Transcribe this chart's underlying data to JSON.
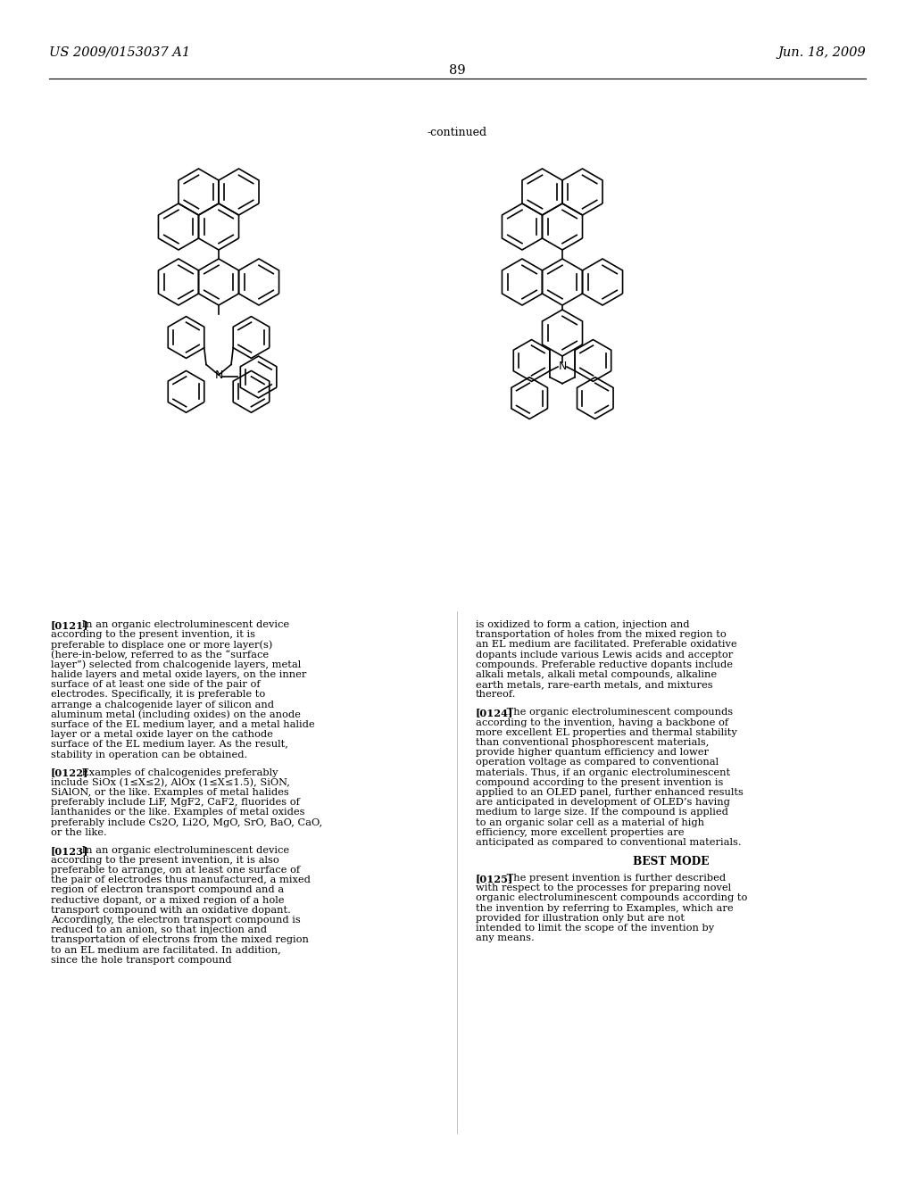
{
  "bg_color": "#ffffff",
  "header_left": "US 2009/0153037 A1",
  "header_right": "Jun. 18, 2009",
  "page_number": "89",
  "continued_label": "-continued",
  "paragraphs": [
    {
      "tag": "[0121]",
      "text": "In an organic electroluminescent device according to the present invention, it is preferable to displace one or more layer(s) (here-in-below, referred to as the “surface layer”) selected from chalcogenide layers, metal halide layers and metal oxide layers, on the inner surface of at least one side of the pair of electrodes. Specifically, it is preferable to arrange a chalcogenide layer of silicon and aluminum metal (including oxides) on the anode surface of the EL medium layer, and a metal halide layer or a metal oxide layer on the cathode surface of the EL medium layer. As the result, stability in operation can be obtained.",
      "col": 0
    },
    {
      "tag": "[0122]",
      "text": "Examples of chalcogenides preferably include SiOx (1≤X≤2), AlOx (1≤X≤1.5), SiON, SiAlON, or the like. Examples of metal halides preferably include LiF, MgF2, CaF2, fluorides of lanthanides or the like. Examples of metal oxides preferably include Cs2O, Li2O, MgO, SrO, BaO, CaO, or the like.",
      "col": 0
    },
    {
      "tag": "[0123]",
      "text": "In an organic electroluminescent device according to the present invention, it is also preferable to arrange, on at least one surface of the pair of electrodes thus manufactured, a mixed region of electron transport compound and a reductive dopant, or a mixed region of a hole transport compound with an oxidative dopant. Accordingly, the electron transport compound is reduced to an anion, so that injection and transportation of electrons from the mixed region to an EL medium are facilitated. In addition, since the hole transport compound",
      "col": 0
    },
    {
      "tag": "",
      "text": "is oxidized to form a cation, injection and transportation of holes from the mixed region to an EL medium are facilitated. Preferable oxidative dopants include various Lewis acids and acceptor compounds. Preferable reductive dopants include alkali metals, alkali metal compounds, alkaline earth metals, rare-earth metals, and mixtures thereof.",
      "col": 1
    },
    {
      "tag": "[0124]",
      "text": "The organic electroluminescent compounds according to the invention, having a backbone of more excellent EL properties and thermal stability than conventional phosphorescent materials, provide higher quantum efficiency and lower operation voltage as compared to conventional materials. Thus, if an organic electroluminescent compound according to the present invention is applied to an OLED panel, further enhanced results are anticipated in development of OLED’s having medium to large size. If the compound is applied to an organic solar cell as a material of high efficiency, more excellent properties are anticipated as compared to conventional materials.",
      "col": 1
    },
    {
      "tag": "BEST MODE",
      "text": "",
      "col": 1,
      "center": true
    },
    {
      "tag": "[0125]",
      "text": "The present invention is further described with respect to the processes for preparing novel organic electroluminescent compounds according to the invention by referring to Examples, which are provided for illustration only but are not intended to limit the scope of the invention by any means.",
      "col": 1
    }
  ]
}
